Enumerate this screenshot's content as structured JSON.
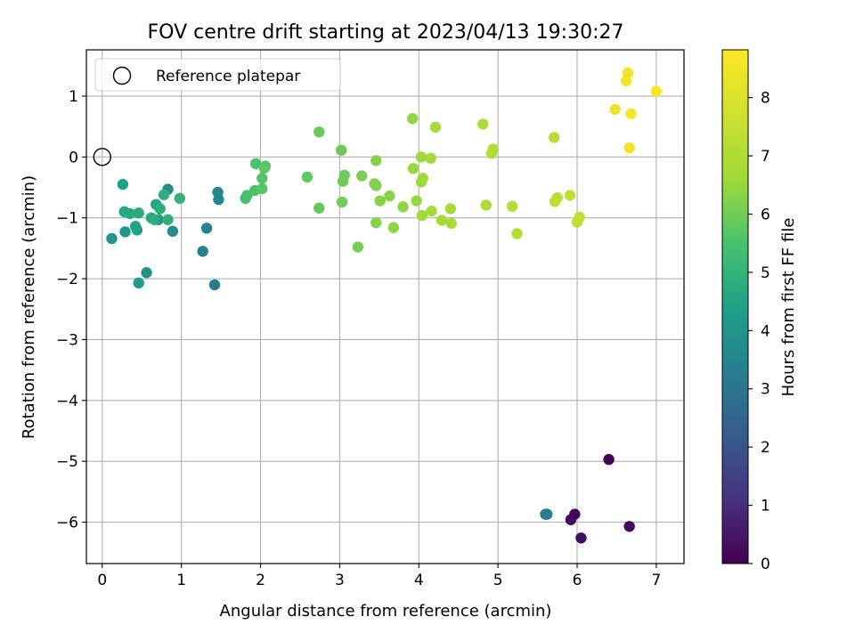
{
  "chart_data": {
    "type": "scatter",
    "title": "FOV centre drift starting at 2023/04/13 19:30:27",
    "xlabel": "Angular distance from reference (arcmin)",
    "ylabel": "Rotation from reference (arcmin)",
    "xlim": [
      -0.2,
      7.35
    ],
    "ylim": [
      -6.68,
      1.76
    ],
    "xticks": [
      0,
      1,
      2,
      3,
      4,
      5,
      6,
      7
    ],
    "yticks": [
      1,
      0,
      -1,
      -2,
      -3,
      -4,
      -5,
      -6
    ],
    "grid": true,
    "legend": {
      "position": "top-left",
      "entries": [
        {
          "label": "Reference platepar",
          "marker": "open-circle"
        }
      ]
    },
    "reference_point": {
      "x": 0,
      "y": 0
    },
    "colorbar": {
      "label": "Hours from first FF file",
      "colormap": "viridis",
      "range": [
        0,
        8.82
      ],
      "ticks": [
        0,
        1,
        2,
        3,
        4,
        5,
        6,
        7,
        8
      ]
    },
    "points": [
      {
        "x": 6.4,
        "y": -4.97,
        "c": 0.05
      },
      {
        "x": 5.97,
        "y": -5.87,
        "c": 0.1
      },
      {
        "x": 5.92,
        "y": -5.96,
        "c": 0.15
      },
      {
        "x": 6.66,
        "y": -6.07,
        "c": 0.2
      },
      {
        "x": 6.05,
        "y": -6.26,
        "c": 0.25
      },
      {
        "x": 5.6,
        "y": -5.87,
        "c": 3.2
      },
      {
        "x": 5.62,
        "y": -5.87,
        "c": 3.3
      },
      {
        "x": 1.42,
        "y": -2.1,
        "c": 3.2
      },
      {
        "x": 1.27,
        "y": -1.55,
        "c": 3.3
      },
      {
        "x": 1.32,
        "y": -1.17,
        "c": 3.4
      },
      {
        "x": 1.46,
        "y": -0.58,
        "c": 3.5
      },
      {
        "x": 1.47,
        "y": -0.7,
        "c": 3.55
      },
      {
        "x": 0.89,
        "y": -1.22,
        "c": 3.7
      },
      {
        "x": 0.83,
        "y": -0.53,
        "c": 3.75
      },
      {
        "x": 0.56,
        "y": -1.9,
        "c": 3.9
      },
      {
        "x": 0.12,
        "y": -1.34,
        "c": 4.0
      },
      {
        "x": 0.29,
        "y": -1.23,
        "c": 4.1
      },
      {
        "x": 0.71,
        "y": -1.03,
        "c": 4.2
      },
      {
        "x": 0.46,
        "y": -2.07,
        "c": 4.3
      },
      {
        "x": 0.26,
        "y": -0.45,
        "c": 4.4
      },
      {
        "x": 0.44,
        "y": -1.2,
        "c": 4.45
      },
      {
        "x": 0.42,
        "y": -1.14,
        "c": 4.5
      },
      {
        "x": 0.68,
        "y": -0.78,
        "c": 4.55
      },
      {
        "x": 0.28,
        "y": -0.9,
        "c": 4.6
      },
      {
        "x": 0.35,
        "y": -0.93,
        "c": 4.65
      },
      {
        "x": 0.46,
        "y": -0.92,
        "c": 4.7
      },
      {
        "x": 0.62,
        "y": -1.0,
        "c": 4.7
      },
      {
        "x": 0.66,
        "y": -1.03,
        "c": 4.75
      },
      {
        "x": 0.73,
        "y": -0.85,
        "c": 4.8
      },
      {
        "x": 0.78,
        "y": -0.62,
        "c": 4.85
      },
      {
        "x": 0.83,
        "y": -1.03,
        "c": 4.9
      },
      {
        "x": 0.98,
        "y": -0.68,
        "c": 5.0
      },
      {
        "x": 1.81,
        "y": -0.68,
        "c": 5.4
      },
      {
        "x": 1.83,
        "y": -0.63,
        "c": 5.45
      },
      {
        "x": 1.94,
        "y": -0.11,
        "c": 5.5
      },
      {
        "x": 1.93,
        "y": -0.55,
        "c": 5.55
      },
      {
        "x": 2.02,
        "y": -0.35,
        "c": 5.6
      },
      {
        "x": 2.02,
        "y": -0.52,
        "c": 5.65
      },
      {
        "x": 2.06,
        "y": -0.15,
        "c": 5.7
      },
      {
        "x": 2.05,
        "y": -0.18,
        "c": 5.7
      },
      {
        "x": 2.59,
        "y": -0.33,
        "c": 5.8
      },
      {
        "x": 2.74,
        "y": -0.84,
        "c": 5.85
      },
      {
        "x": 2.74,
        "y": 0.41,
        "c": 5.9
      },
      {
        "x": 3.02,
        "y": 0.11,
        "c": 5.95
      },
      {
        "x": 3.04,
        "y": -0.4,
        "c": 6.0
      },
      {
        "x": 3.06,
        "y": -0.3,
        "c": 6.0
      },
      {
        "x": 3.03,
        "y": -0.74,
        "c": 6.05
      },
      {
        "x": 3.23,
        "y": -1.48,
        "c": 6.1
      },
      {
        "x": 3.28,
        "y": -0.31,
        "c": 6.15
      },
      {
        "x": 3.44,
        "y": -0.44,
        "c": 6.2
      },
      {
        "x": 3.46,
        "y": -0.47,
        "c": 6.2
      },
      {
        "x": 3.46,
        "y": -0.06,
        "c": 6.25
      },
      {
        "x": 3.46,
        "y": -1.08,
        "c": 6.3
      },
      {
        "x": 3.51,
        "y": -0.72,
        "c": 6.3
      },
      {
        "x": 3.63,
        "y": -0.64,
        "c": 6.35
      },
      {
        "x": 3.68,
        "y": -1.16,
        "c": 6.4
      },
      {
        "x": 3.8,
        "y": -0.82,
        "c": 6.4
      },
      {
        "x": 3.92,
        "y": 0.63,
        "c": 6.45
      },
      {
        "x": 3.93,
        "y": -0.19,
        "c": 6.5
      },
      {
        "x": 3.97,
        "y": -0.72,
        "c": 6.5
      },
      {
        "x": 4.03,
        "y": 0.0,
        "c": 6.55
      },
      {
        "x": 4.03,
        "y": -0.41,
        "c": 6.55
      },
      {
        "x": 4.05,
        "y": -0.35,
        "c": 6.6
      },
      {
        "x": 4.04,
        "y": -0.96,
        "c": 6.6
      },
      {
        "x": 4.15,
        "y": -0.02,
        "c": 6.65
      },
      {
        "x": 4.16,
        "y": -0.89,
        "c": 6.7
      },
      {
        "x": 4.21,
        "y": 0.49,
        "c": 6.7
      },
      {
        "x": 4.29,
        "y": -1.04,
        "c": 6.75
      },
      {
        "x": 4.4,
        "y": -0.85,
        "c": 6.8
      },
      {
        "x": 4.41,
        "y": -1.09,
        "c": 6.8
      },
      {
        "x": 4.81,
        "y": 0.54,
        "c": 6.9
      },
      {
        "x": 4.85,
        "y": -0.79,
        "c": 6.95
      },
      {
        "x": 4.92,
        "y": 0.06,
        "c": 7.0
      },
      {
        "x": 4.94,
        "y": 0.13,
        "c": 7.05
      },
      {
        "x": 5.18,
        "y": -0.81,
        "c": 7.1
      },
      {
        "x": 5.24,
        "y": -1.26,
        "c": 7.15
      },
      {
        "x": 5.71,
        "y": 0.32,
        "c": 7.2
      },
      {
        "x": 5.72,
        "y": -0.73,
        "c": 7.25
      },
      {
        "x": 5.75,
        "y": -0.67,
        "c": 7.3
      },
      {
        "x": 5.91,
        "y": -0.63,
        "c": 7.35
      },
      {
        "x": 6.0,
        "y": -1.07,
        "c": 7.4
      },
      {
        "x": 6.03,
        "y": -0.99,
        "c": 7.4
      },
      {
        "x": 6.48,
        "y": 0.78,
        "c": 8.4
      },
      {
        "x": 6.62,
        "y": 1.25,
        "c": 8.5
      },
      {
        "x": 6.64,
        "y": 1.38,
        "c": 8.55
      },
      {
        "x": 6.66,
        "y": 0.15,
        "c": 8.6
      },
      {
        "x": 6.68,
        "y": 0.71,
        "c": 8.65
      },
      {
        "x": 7.0,
        "y": 1.08,
        "c": 8.7
      }
    ]
  }
}
